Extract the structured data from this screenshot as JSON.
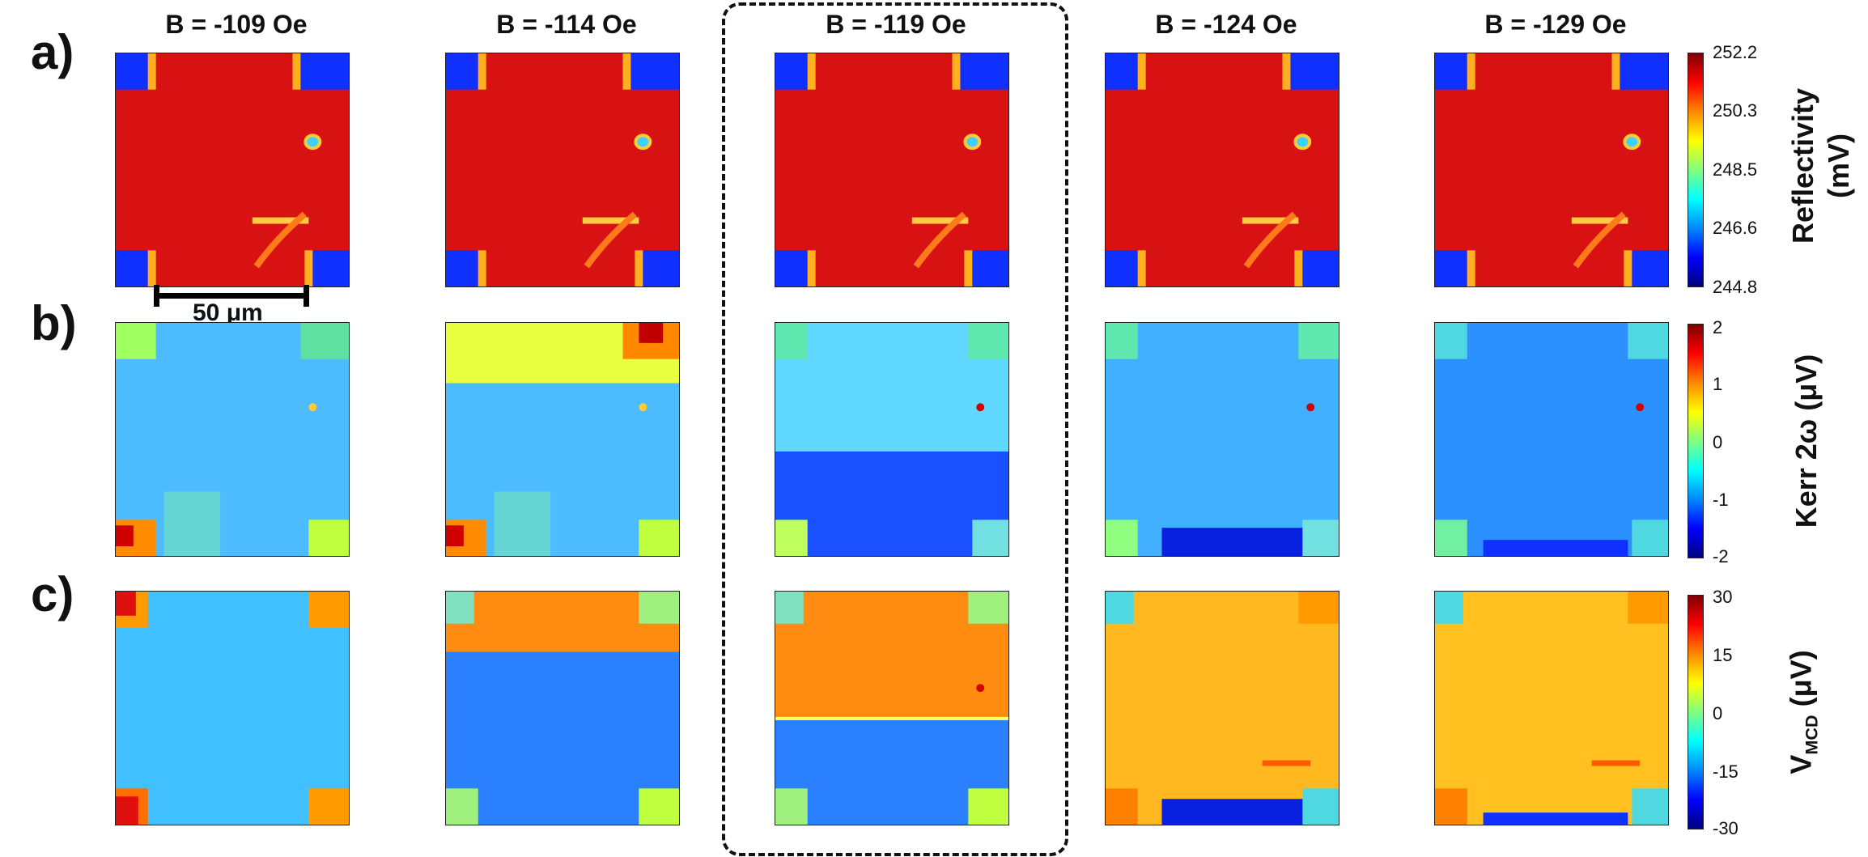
{
  "columns": [
    {
      "title": "B = -109 Oe"
    },
    {
      "title": "B = -114 Oe"
    },
    {
      "title": "B = -119 Oe"
    },
    {
      "title": "B = -124 Oe"
    },
    {
      "title": "B = -129 Oe"
    }
  ],
  "rows": [
    {
      "label": "a)",
      "colorbar": {
        "label_line1": "Reflectivity",
        "label_line2": "(mV)",
        "ticks": [
          "252.2",
          "250.3",
          "248.5",
          "246.6",
          "244.8"
        ]
      }
    },
    {
      "label": "b)",
      "colorbar": {
        "label": "Kerr 2ω (μV)",
        "ticks": [
          "2",
          "1",
          "0",
          "-1",
          "-2"
        ]
      }
    },
    {
      "label": "c)",
      "colorbar": {
        "label_main": "V",
        "label_sub": "MCD",
        "label_unit": " (μV)",
        "ticks": [
          "30",
          "15",
          "0",
          "-15",
          "-30"
        ]
      }
    }
  ],
  "scale_bar": {
    "label": "50 μm"
  },
  "colors": {
    "dark_red": "#b00000",
    "red": "#e01010",
    "orange": "#ff8800",
    "yellow": "#ffe24a",
    "cyan": "#50d8ff",
    "light_blue": "#40b8ff",
    "blue": "#2a80ff",
    "deep_blue": "#1030ff",
    "navy": "#0000b0"
  }
}
